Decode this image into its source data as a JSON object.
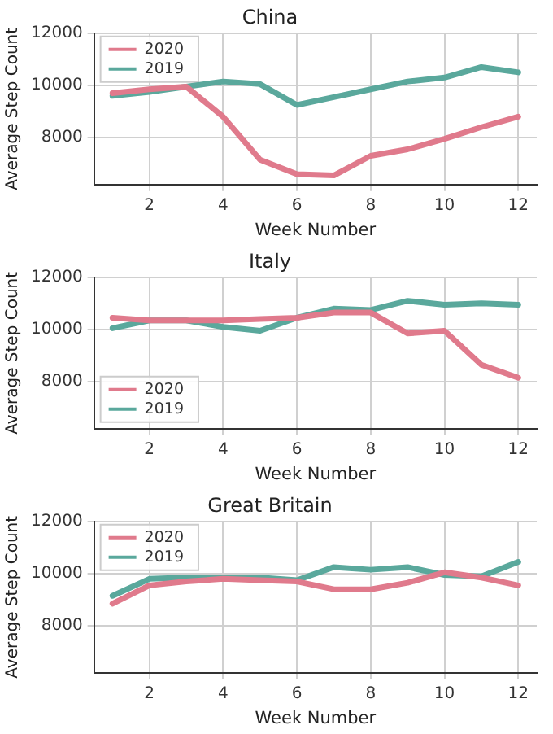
{
  "chart_data": [
    {
      "type": "line",
      "title": "China",
      "xlabel": "Week Number",
      "ylabel": "Average Step Count",
      "x": [
        1,
        2,
        3,
        4,
        5,
        6,
        7,
        8,
        9,
        10,
        11,
        12
      ],
      "xlim": [
        0.5,
        12.5
      ],
      "xticks": [
        2,
        4,
        6,
        8,
        10,
        12
      ],
      "ylim": [
        6200,
        12000
      ],
      "yticks": [
        8000,
        10000,
        12000
      ],
      "grid": true,
      "legend": "top left",
      "series": [
        {
          "name": "2020",
          "color": "#e07a8c",
          "values": [
            9700,
            9850,
            9950,
            8800,
            7150,
            6600,
            6550,
            7300,
            7550,
            7950,
            8400,
            8800
          ]
        },
        {
          "name": "2019",
          "color": "#5aa89c",
          "values": [
            9600,
            9750,
            9950,
            10150,
            10050,
            9250,
            9550,
            9850,
            10150,
            10300,
            10700,
            10500
          ]
        }
      ]
    },
    {
      "type": "line",
      "title": "Italy",
      "xlabel": "Week Number",
      "ylabel": "Average Step Count",
      "x": [
        1,
        2,
        3,
        4,
        5,
        6,
        7,
        8,
        9,
        10,
        11,
        12
      ],
      "xlim": [
        0.5,
        12.5
      ],
      "xticks": [
        2,
        4,
        6,
        8,
        10,
        12
      ],
      "ylim": [
        6200,
        12000
      ],
      "yticks": [
        8000,
        10000,
        12000
      ],
      "grid": true,
      "legend": "bottom left",
      "series": [
        {
          "name": "2020",
          "color": "#e07a8c",
          "values": [
            10450,
            10350,
            10350,
            10350,
            10400,
            10450,
            10650,
            10650,
            9850,
            9950,
            8650,
            8150
          ]
        },
        {
          "name": "2019",
          "color": "#5aa89c",
          "values": [
            10050,
            10350,
            10350,
            10100,
            9950,
            10450,
            10800,
            10750,
            11100,
            10950,
            11000,
            10950
          ]
        }
      ]
    },
    {
      "type": "line",
      "title": "Great Britain",
      "xlabel": "Week Number",
      "ylabel": "Average Step Count",
      "x": [
        1,
        2,
        3,
        4,
        5,
        6,
        7,
        8,
        9,
        10,
        11,
        12
      ],
      "xlim": [
        0.5,
        12.5
      ],
      "xticks": [
        2,
        4,
        6,
        8,
        10,
        12
      ],
      "ylim": [
        6200,
        12000
      ],
      "yticks": [
        8000,
        10000,
        12000
      ],
      "grid": true,
      "legend": "top left",
      "series": [
        {
          "name": "2020",
          "color": "#e07a8c",
          "values": [
            8850,
            9550,
            9700,
            9800,
            9750,
            9700,
            9400,
            9400,
            9650,
            10050,
            9850,
            9550
          ]
        },
        {
          "name": "2019",
          "color": "#5aa89c",
          "values": [
            9150,
            9800,
            9850,
            9850,
            9850,
            9750,
            10250,
            10150,
            10250,
            9950,
            9900,
            10450
          ]
        }
      ]
    }
  ]
}
